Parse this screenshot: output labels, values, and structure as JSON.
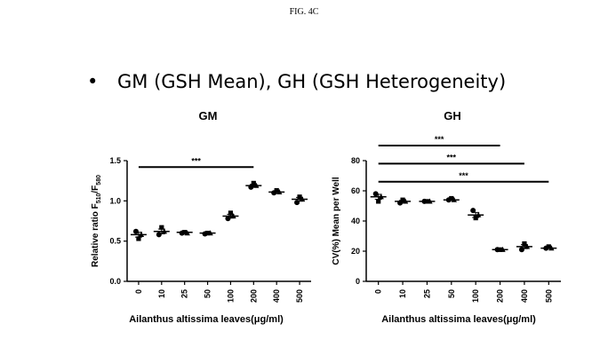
{
  "figure_label": "FIG. 4C",
  "headline": {
    "bullet": "•",
    "text": "GM (GSH Mean), GH (GSH Heterogeneity)"
  },
  "chart_data": [
    {
      "type": "scatter",
      "title": "GM",
      "xlabel": "Ailanthus altissima leaves(μg/ml)",
      "ylabel_main": "Relative ratio F",
      "ylabel_sub1": "510",
      "ylabel_sep": "/F",
      "ylabel_sub2": "580",
      "categories": [
        "0",
        "10",
        "25",
        "50",
        "100",
        "200",
        "400",
        "500"
      ],
      "ylim": [
        0,
        1.5
      ],
      "yticks": [
        0.0,
        0.5,
        1.0,
        1.5
      ],
      "ytick_labels": [
        "0.0",
        "0.5",
        "1.0",
        "1.5"
      ],
      "series": [
        {
          "values": [
            [
              0.62,
              0.53,
              0.58
            ],
            [
              0.58,
              0.67,
              0.62
            ],
            [
              0.6,
              0.61,
              0.6
            ],
            [
              0.59,
              0.6,
              0.6
            ],
            [
              0.78,
              0.85,
              0.81
            ],
            [
              1.17,
              1.22,
              1.19
            ],
            [
              1.1,
              1.13,
              1.11
            ],
            [
              0.98,
              1.05,
              1.02
            ]
          ],
          "means": [
            0.58,
            0.62,
            0.61,
            0.6,
            0.81,
            1.19,
            1.11,
            1.02
          ]
        }
      ],
      "significance": [
        {
          "from": "0",
          "to": "200",
          "label": "***",
          "y": 1.42
        }
      ]
    },
    {
      "type": "scatter",
      "title": "GH",
      "xlabel": "Ailanthus altissima leaves(μg/ml)",
      "ylabel": "CV(%) Mean per Well",
      "categories": [
        "0",
        "10",
        "25",
        "50",
        "100",
        "200",
        "400",
        "500"
      ],
      "ylim": [
        0,
        80
      ],
      "yticks": [
        0,
        20,
        40,
        60,
        80
      ],
      "ytick_labels": [
        "0",
        "20",
        "40",
        "60",
        "80"
      ],
      "series": [
        {
          "values": [
            [
              58,
              53,
              56
            ],
            [
              52,
              54,
              53
            ],
            [
              53,
              53,
              53
            ],
            [
              54,
              55,
              54
            ],
            [
              47,
              42,
              44
            ],
            [
              21,
              21,
              21
            ],
            [
              21,
              25,
              23
            ],
            [
              22,
              23,
              22
            ]
          ],
          "means": [
            56,
            53,
            53,
            54,
            44,
            21,
            23,
            22
          ]
        }
      ],
      "significance": [
        {
          "from": "0",
          "to": "200",
          "label": "***",
          "y": 90
        },
        {
          "from": "0",
          "to": "400",
          "label": "***",
          "y": 78
        },
        {
          "from": "0",
          "to": "500",
          "label": "***",
          "y": 66
        }
      ]
    }
  ]
}
